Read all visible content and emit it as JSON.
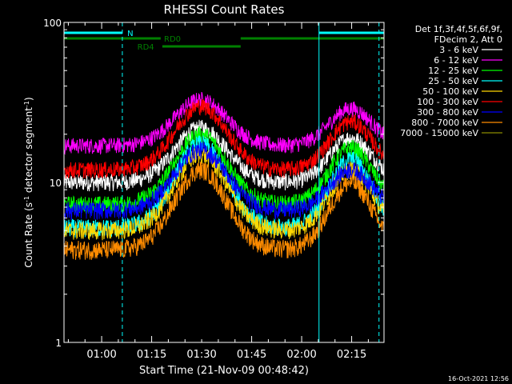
{
  "chart_data": {
    "type": "line",
    "title": "RHESSI Count Rates",
    "xlabel": "Start Time (21-Nov-09 00:48:42)",
    "ylabel_main": "Count Rate (s",
    "ylabel_exp1": "-1",
    "ylabel_mid": " detector segment",
    "ylabel_exp2": "-1",
    "ylabel_end": ")",
    "yscale": "log",
    "ylim": [
      1,
      100
    ],
    "y_ticks": [
      {
        "value": 1,
        "label": "1"
      },
      {
        "value": 10,
        "label": "10"
      },
      {
        "value": 100,
        "label": "100"
      }
    ],
    "xlim_minutes": [
      0,
      96
    ],
    "x_ticks": [
      {
        "minute": 11.3,
        "label": "01:00"
      },
      {
        "minute": 26.3,
        "label": "01:15"
      },
      {
        "minute": 41.3,
        "label": "01:30"
      },
      {
        "minute": 56.3,
        "label": "01:45"
      },
      {
        "minute": 71.3,
        "label": "02:00"
      },
      {
        "minute": 86.3,
        "label": "02:15"
      }
    ],
    "legend_header": [
      "Det 1f,3f,4f,5f,6f,9f,",
      "FDecim 2, Att 0"
    ],
    "series": [
      {
        "name": "3 - 6 keV",
        "color": "#ffffff",
        "base": 10.0,
        "peak1": 22.0,
        "peak2": 19.0
      },
      {
        "name": "6 - 12 keV",
        "color": "#ff00ff",
        "base": 17.0,
        "peak1": 33.0,
        "peak2": 29.0
      },
      {
        "name": "12 - 25 keV",
        "color": "#00ff00",
        "base": 7.3,
        "peak1": 20.0,
        "peak2": 16.5
      },
      {
        "name": "25 - 50 keV",
        "color": "#00ffff",
        "base": 5.2,
        "peak1": 17.5,
        "peak2": 14.0
      },
      {
        "name": "50 - 100 keV",
        "color": "#ffd700",
        "base": 5.0,
        "peak1": 15.0,
        "peak2": 12.0
      },
      {
        "name": "100 - 300 keV",
        "color": "#ff0000",
        "base": 12.0,
        "peak1": 30.0,
        "peak2": 24.0
      },
      {
        "name": "300 - 800 keV",
        "color": "#0000ff",
        "base": 6.7,
        "peak1": 16.0,
        "peak2": 12.0
      },
      {
        "name": "800 - 7000 keV",
        "color": "#ff8c00",
        "base": 3.8,
        "peak1": 12.0,
        "peak2": 10.0
      },
      {
        "name": "7000 - 15000 keV",
        "color": "#8b8b00",
        "base": null,
        "peak1": null,
        "peak2": null
      }
    ],
    "attenuator_bars": [
      {
        "label": "N",
        "color": "#00ffff",
        "segments": [
          [
            0,
            17.5
          ],
          [
            76.5,
            96
          ]
        ],
        "label_minute": 19,
        "level": 1
      },
      {
        "label": "RD0",
        "color": "#008000",
        "segments": [
          [
            0,
            29
          ],
          [
            53,
            96
          ]
        ],
        "label_minute": 30,
        "level": 2
      },
      {
        "label": "RD4",
        "color": "#008000",
        "segments": [
          [
            29.5,
            53
          ]
        ],
        "label_minute": 22,
        "level": 3
      }
    ],
    "vertical_lines": [
      {
        "minute": 17.5,
        "style": "dashed",
        "color": "#00ffff"
      },
      {
        "minute": 76.5,
        "style": "solid",
        "color": "#00ffff"
      },
      {
        "minute": 94.5,
        "style": "dashed",
        "color": "#00ffff"
      }
    ],
    "peaks": [
      {
        "center_minute": 41,
        "width": 11
      },
      {
        "center_minute": 86,
        "width": 9
      }
    ],
    "timestamp": "16-Oct-2021 12:56"
  }
}
